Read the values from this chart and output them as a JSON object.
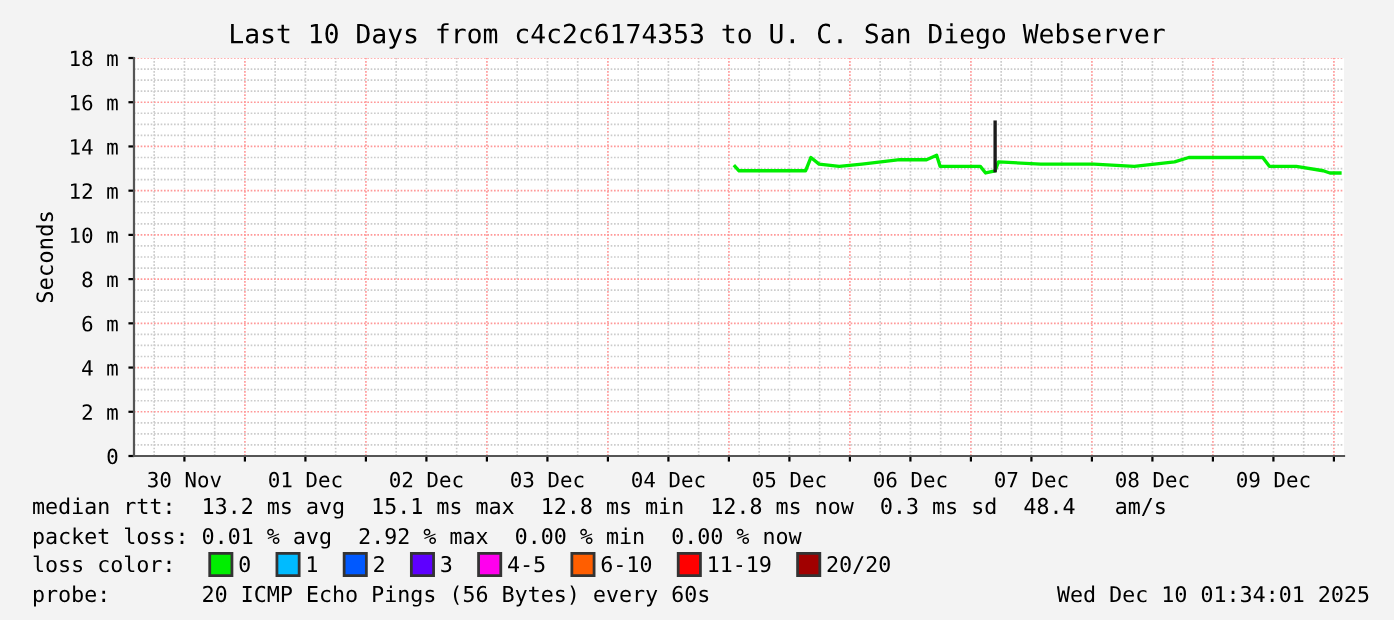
{
  "chart_data": {
    "type": "line",
    "title": "Last 10 Days from c4c2c6174353 to U. C. San Diego Webserver",
    "ylabel": "Seconds",
    "legend_title": "loss color:",
    "x": [
      "2025-12-05T01:12",
      "2025-12-05T02:00",
      "2025-12-05T15:12",
      "2025-12-05T16:16",
      "2025-12-05T17:53",
      "2025-12-05T21:53",
      "2025-12-06T02:24",
      "2025-12-06T09:53",
      "2025-12-06T15:12",
      "2025-12-06T17:12",
      "2025-12-06T17:53",
      "2025-12-07T01:52",
      "2025-12-07T02:55",
      "2025-12-07T04:48",
      "2025-12-07T05:28",
      "2025-12-07T13:52",
      "2025-12-08T00:24",
      "2025-12-08T08:24",
      "2025-12-08T16:24",
      "2025-12-08T19:12",
      "2025-12-09T05:53",
      "2025-12-09T09:53",
      "2025-12-09T11:12",
      "2025-12-09T16:31",
      "2025-12-09T21:53",
      "2025-12-09T23:12",
      "2025-12-10T01:12"
    ],
    "series": [
      {
        "name": "0",
        "color": "#00ee00",
        "values": [
          13.1,
          12.9,
          12.9,
          13.5,
          13.2,
          13.1,
          13.2,
          13.4,
          13.4,
          13.6,
          13.1,
          13.1,
          12.8,
          12.9,
          13.3,
          13.2,
          13.2,
          13.1,
          13.3,
          13.5,
          13.5,
          13.5,
          13.1,
          13.1,
          12.9,
          12.8,
          12.8
        ]
      },
      {
        "type": "line",
        "color": "#1a1a1a",
        "x": [
          "2025-12-07T04:48",
          "2025-12-07T04:48"
        ],
        "values": [
          12.9,
          15.1
        ]
      },
      {
        "name": "1",
        "color": "#00bbff",
        "values": [
          null,
          null,
          null,
          null,
          null,
          null,
          null,
          null,
          null,
          null,
          null,
          null,
          null,
          null,
          null,
          null,
          null,
          null,
          null,
          null,
          null,
          null,
          null,
          null,
          null,
          null,
          null
        ]
      },
      {
        "name": "2",
        "color": "#0059ff",
        "values": [
          null,
          null,
          null,
          null,
          null,
          null,
          null,
          null,
          null,
          null,
          null,
          null,
          null,
          null,
          null,
          null,
          null,
          null,
          null,
          null,
          null,
          null,
          null,
          null,
          null,
          null,
          null
        ]
      },
      {
        "name": "3",
        "color": "#5e00ff",
        "values": [
          null,
          null,
          null,
          null,
          null,
          null,
          null,
          null,
          null,
          null,
          null,
          null,
          null,
          null,
          null,
          null,
          null,
          null,
          null,
          null,
          null,
          null,
          null,
          null,
          null,
          null,
          null
        ]
      },
      {
        "name": "4-5",
        "color": "#ff00ee",
        "values": [
          null,
          null,
          null,
          null,
          null,
          null,
          null,
          null,
          null,
          null,
          null,
          null,
          null,
          null,
          null,
          null,
          null,
          null,
          null,
          null,
          null,
          null,
          null,
          null,
          null,
          null,
          null
        ]
      },
      {
        "name": "6-10",
        "color": "#ff5e00",
        "values": [
          null,
          null,
          null,
          null,
          null,
          null,
          null,
          null,
          null,
          null,
          null,
          null,
          null,
          null,
          null,
          null,
          null,
          null,
          null,
          null,
          null,
          null,
          null,
          null,
          null,
          null,
          null
        ]
      },
      {
        "name": "11-19",
        "color": "#ff0000",
        "values": [
          null,
          null,
          null,
          null,
          null,
          null,
          null,
          null,
          null,
          null,
          null,
          null,
          null,
          null,
          null,
          null,
          null,
          null,
          null,
          null,
          null,
          null,
          null,
          null,
          null,
          null,
          null
        ]
      },
      {
        "name": "20/20",
        "color": "#a10000",
        "values": [
          null,
          null,
          null,
          null,
          null,
          null,
          null,
          null,
          null,
          null,
          null,
          null,
          null,
          null,
          null,
          null,
          null,
          null,
          null,
          null,
          null,
          null,
          null,
          null,
          null,
          null,
          null
        ]
      }
    ],
    "xlim": [
      "2025-11-30T02:00",
      "2025-12-10T02:00"
    ],
    "xticks": [
      {
        "value": "2025-11-30T12:00",
        "label": "30 Nov"
      },
      {
        "value": "2025-12-01T00:00",
        "label": null
      },
      {
        "value": "2025-12-01T12:00",
        "label": "01 Dec"
      },
      {
        "value": "2025-12-02T00:00",
        "label": null
      },
      {
        "value": "2025-12-02T12:00",
        "label": "02 Dec"
      },
      {
        "value": "2025-12-03T00:00",
        "label": null
      },
      {
        "value": "2025-12-03T12:00",
        "label": "03 Dec"
      },
      {
        "value": "2025-12-04T00:00",
        "label": null
      },
      {
        "value": "2025-12-04T12:00",
        "label": "04 Dec"
      },
      {
        "value": "2025-12-05T00:00",
        "label": null
      },
      {
        "value": "2025-12-05T12:00",
        "label": "05 Dec"
      },
      {
        "value": "2025-12-06T00:00",
        "label": null
      },
      {
        "value": "2025-12-06T12:00",
        "label": "06 Dec"
      },
      {
        "value": "2025-12-07T00:00",
        "label": null
      },
      {
        "value": "2025-12-07T12:00",
        "label": "07 Dec"
      },
      {
        "value": "2025-12-08T00:00",
        "label": null
      },
      {
        "value": "2025-12-08T12:00",
        "label": "08 Dec"
      },
      {
        "value": "2025-12-09T00:00",
        "label": null
      },
      {
        "value": "2025-12-09T12:00",
        "label": "09 Dec"
      },
      {
        "value": "2025-12-10T00:00",
        "label": null
      }
    ],
    "ylim": [
      0,
      18
    ],
    "yticks": [
      0,
      {
        "value": 2,
        "label": "2 m"
      },
      {
        "value": 4,
        "label": "4 m"
      },
      {
        "value": 6,
        "label": "6 m"
      },
      {
        "value": 8,
        "label": "8 m"
      },
      {
        "value": 10,
        "label": "10 m"
      },
      {
        "value": 12,
        "label": "12 m"
      },
      {
        "value": 14,
        "label": "14 m"
      },
      {
        "value": 16,
        "label": "16 m"
      },
      {
        "value": 18,
        "label": "18 m"
      }
    ],
    "grid": true,
    "legend": "bottom",
    "marker": "none",
    "line_style": "solid",
    "annotations": [
      "median rtt:  13.2 ms avg  15.1 ms max  12.8 ms min  12.8 ms now  0.3 ms sd  48.4   am/s",
      "packet loss: 0.01 % avg  2.92 % max  0.00 % min  0.00 % now",
      "probe:       20 ICMP Echo Pings (56 Bytes) every 60s",
      "Wed Dec 10 01:34:01 2025"
    ]
  }
}
